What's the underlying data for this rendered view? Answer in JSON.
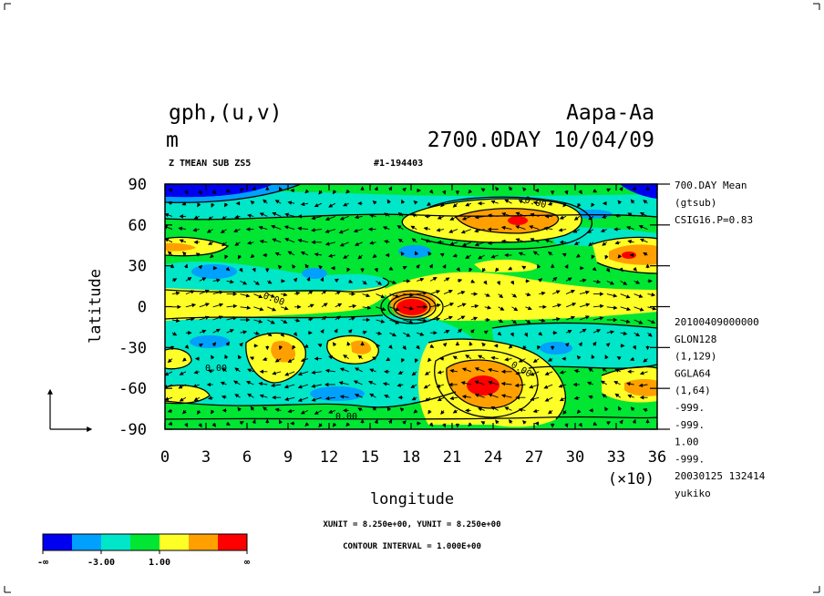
{
  "header": {
    "variable": "gph,(u,v)",
    "unit": "m",
    "experiment": "Aapa-Aa",
    "time_date": "2700.0DAY 10/04/09",
    "subtitle_left": "Z TMEAN SUB ZS5",
    "subtitle_mid": "#1-194403"
  },
  "side_info": {
    "top": [
      "700.DAY Mean",
      "(gtsub)",
      "CSIG16.P=0.83"
    ],
    "bottom": [
      "20100409000000",
      "GLON128",
      "(1,129)",
      "GGLA64",
      "(1,64)",
      "-999.",
      "-999.",
      "1.00",
      "-999.",
      "20030125 132414",
      "yukiko"
    ]
  },
  "footer": {
    "units_line": "XUNIT = 8.250e+00, YUNIT = 8.250e+00",
    "contour_line": "CONTOUR INTERVAL = 1.000E+00"
  },
  "colorbar": {
    "colors": [
      "#0000f0",
      "#00a0ff",
      "#00e6c8",
      "#00e632",
      "#ffff28",
      "#ffa000",
      "#ff0000"
    ],
    "labels": [
      "-∞",
      "-3.00",
      "1.00",
      "∞"
    ]
  },
  "colors": {
    "green": "#00e632",
    "teal": "#00e6c8",
    "blue": "#00a0ff",
    "dark_blue": "#0000f0",
    "yellow": "#ffff28",
    "orange": "#ffa000",
    "red": "#ff0000"
  },
  "chart_data": {
    "type": "heatmap",
    "xlabel": "longitude",
    "ylabel": "latitude",
    "x_scale_note": "(×10)",
    "xlim": [
      0,
      36
    ],
    "ylim": [
      -90,
      90
    ],
    "x_ticks": [
      0,
      3,
      6,
      9,
      12,
      15,
      18,
      21,
      24,
      27,
      30,
      33,
      36
    ],
    "y_ticks": [
      90,
      60,
      30,
      0,
      -30,
      -60,
      -90
    ],
    "contour_labels": [
      "0.00",
      "0.00",
      "0.00",
      "0.00",
      "0.00"
    ],
    "features": [
      {
        "name": "max",
        "lon_x10": 18,
        "lat": 0,
        "level": "red"
      },
      {
        "name": "max",
        "lon_x10": 24,
        "lat": -58,
        "level": "red"
      },
      {
        "name": "max",
        "lon_x10": 25.5,
        "lat": 63,
        "level": "red"
      },
      {
        "name": "max",
        "lon_x10": 34,
        "lat": 37,
        "level": "orange"
      },
      {
        "name": "max",
        "lon_x10": 9,
        "lat": -30,
        "level": "orange"
      },
      {
        "name": "max",
        "lon_x10": 14.5,
        "lat": -28,
        "level": "orange"
      },
      {
        "name": "min",
        "lon_x10": 3,
        "lat": 88,
        "level": "dark_blue"
      },
      {
        "name": "min",
        "lon_x10": 35,
        "lat": 88,
        "level": "dark_blue"
      }
    ]
  }
}
